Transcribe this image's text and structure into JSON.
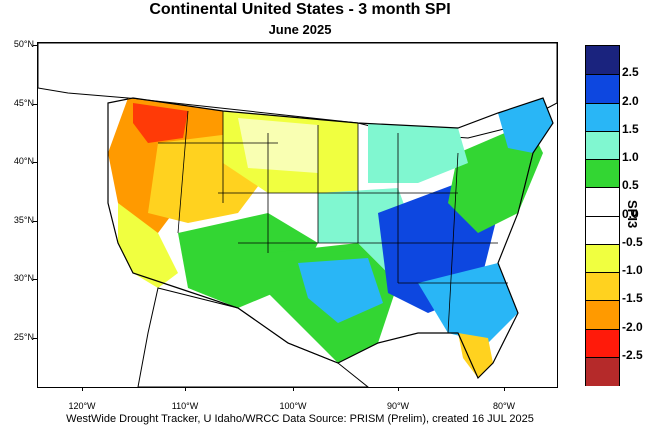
{
  "title": "Continental United States - 3 month SPI",
  "subtitle": "June 2025",
  "footer": "WestWide Drought Tracker, U Idaho/WRCC Data Source: PRISM (Prelim), created 16 JUL 2025",
  "latitude_labels": [
    "50°N",
    "45°N",
    "40°N",
    "35°N",
    "30°N",
    "25°N"
  ],
  "longitude_labels": [
    "120°W",
    "110°W",
    "100°W",
    "90°W",
    "80°W"
  ],
  "colorbar": {
    "title": "SPI3",
    "labels": [
      "2.5",
      "2.0",
      "1.5",
      "1.0",
      "0.5",
      "0.0",
      "-0.5",
      "-1.0",
      "-1.5",
      "-2.0",
      "-2.5"
    ],
    "colors": [
      "#1a237e",
      "#0d47e0",
      "#29b6f6",
      "#80f7d0",
      "#33d633",
      "#ffffff",
      "#ffffff",
      "#f0ff40",
      "#ffd21f",
      "#ff9a00",
      "#ff1a0a",
      "#b52a2a"
    ]
  }
}
